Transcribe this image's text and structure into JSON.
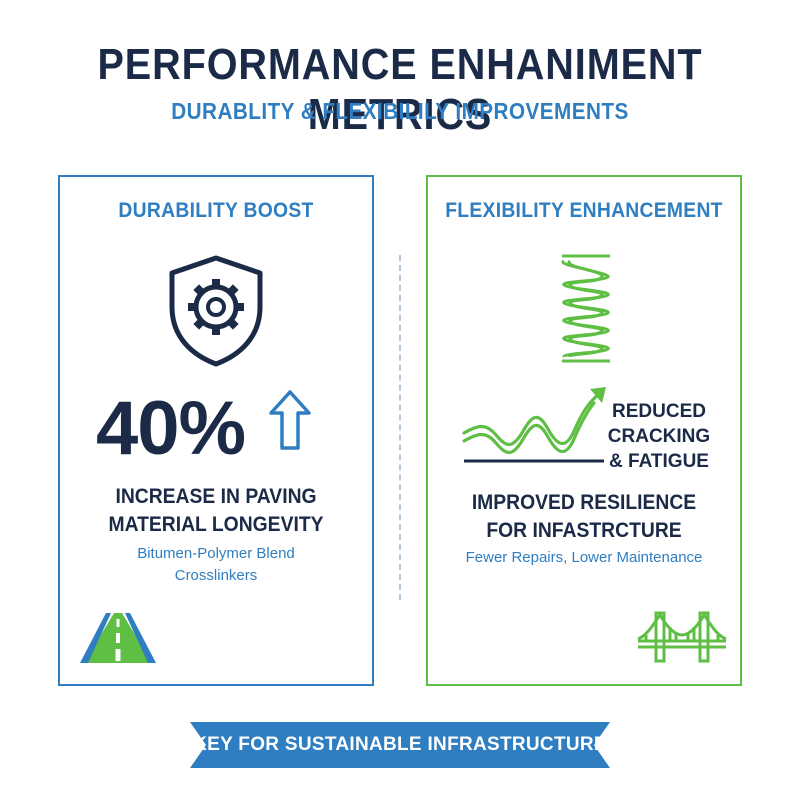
{
  "header": {
    "title": "PERFORMANCE ENHANIMENT METRICS",
    "subtitle": "DURABLITY & FLEXIBILILY IMPROVEMENTS"
  },
  "durability": {
    "heading": "DURABILITY BOOST",
    "stat": "40%",
    "claim_line1": "INCREASE IN PAVING",
    "claim_line2": "MATERIAL LONGEVITY",
    "note_line1": "Bitumen-Polymer Blend",
    "note_line2": "Crosslinkers"
  },
  "flexibility": {
    "heading": "FLEXIBILITY ENHANCEMENT",
    "reduced_line1": "REDUCED",
    "reduced_line2": "CRACKING",
    "reduced_line3": "& FATIGUE",
    "claim_line1": "IMPROVED RESILIENCE",
    "claim_line2": "FOR INFASTRCTURE",
    "note": "Fewer Repairs, Lower Maintenance"
  },
  "footer": {
    "banner": "KEY FOR SUSTAINABLE INFRASTRUCTURE"
  },
  "colors": {
    "navy": "#1b2a47",
    "blue": "#2f7ec1",
    "green": "#5fbf45"
  },
  "icons": [
    "shield-gear-icon",
    "up-arrow-icon",
    "road-icon",
    "spring-icon",
    "wave-arrow-icon",
    "bridge-icon"
  ]
}
